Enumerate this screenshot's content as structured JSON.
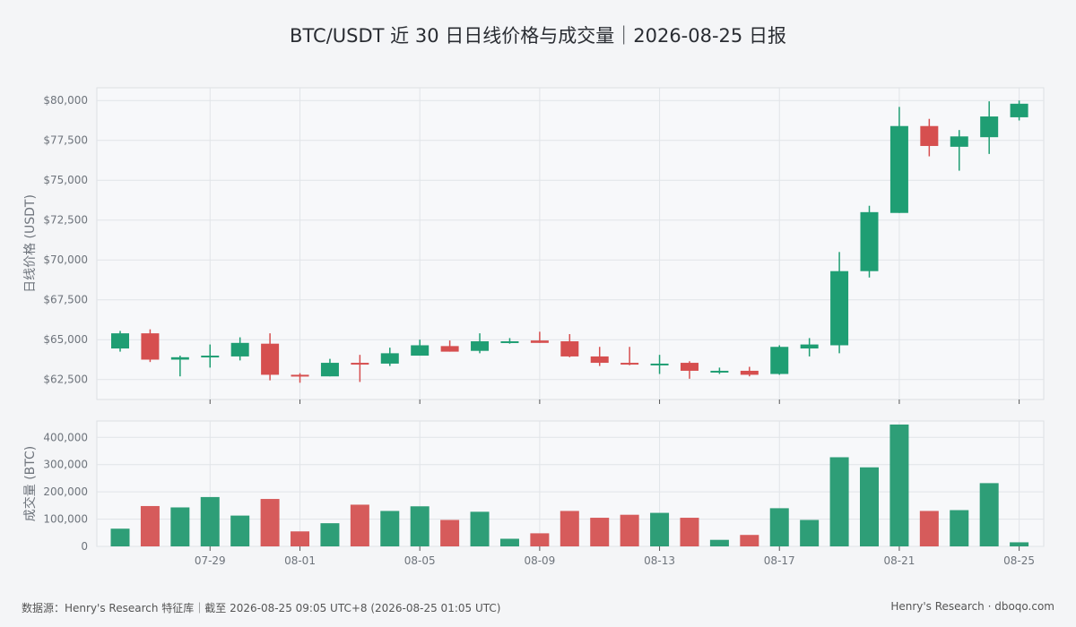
{
  "chart_data": {
    "type": "candlestick",
    "title": "BTC/USDT 近 30 日日线价格与成交量｜2026-08-25 日报",
    "colors": {
      "up": "#1f9e73",
      "down": "#d64f4f",
      "up_volume": "#2e9e77",
      "down_volume": "#d65b5b"
    },
    "grid": true,
    "price_panel": {
      "ylabel": "日线价格 (USDT)",
      "ylim": [
        61250,
        80800
      ],
      "yticks": [
        62500,
        65000,
        67500,
        70000,
        72500,
        75000,
        77500,
        80000
      ],
      "ytick_labels": [
        "$62,500",
        "$65,000",
        "$67,500",
        "$70,000",
        "$72,500",
        "$75,000",
        "$77,500",
        "$80,000"
      ]
    },
    "volume_panel": {
      "ylabel": "成交量 (BTC)",
      "ylim": [
        0,
        460000
      ],
      "yticks": [
        0,
        100000,
        200000,
        300000,
        400000
      ],
      "ytick_labels": [
        "0",
        "100,000",
        "200,000",
        "300,000",
        "400,000"
      ]
    },
    "x_ticks": [
      {
        "date": "2026-07-29",
        "label": "07-29"
      },
      {
        "date": "2026-08-01",
        "label": "08-01"
      },
      {
        "date": "2026-08-05",
        "label": "08-05"
      },
      {
        "date": "2026-08-09",
        "label": "08-09"
      },
      {
        "date": "2026-08-13",
        "label": "08-13"
      },
      {
        "date": "2026-08-17",
        "label": "08-17"
      },
      {
        "date": "2026-08-21",
        "label": "08-21"
      },
      {
        "date": "2026-08-25",
        "label": "08-25"
      }
    ],
    "candles": [
      {
        "date": "2026-07-26",
        "open": 64450,
        "high": 65550,
        "low": 64250,
        "close": 65400,
        "volume": 65000
      },
      {
        "date": "2026-07-27",
        "open": 65400,
        "high": 65650,
        "low": 63600,
        "close": 63750,
        "volume": 148000
      },
      {
        "date": "2026-07-28",
        "open": 63750,
        "high": 64000,
        "low": 62700,
        "close": 63900,
        "volume": 143000
      },
      {
        "date": "2026-07-29",
        "open": 63900,
        "high": 64700,
        "low": 63250,
        "close": 64000,
        "volume": 181000
      },
      {
        "date": "2026-07-30",
        "open": 63950,
        "high": 65150,
        "low": 63700,
        "close": 64800,
        "volume": 113000
      },
      {
        "date": "2026-07-31",
        "open": 64750,
        "high": 65400,
        "low": 62450,
        "close": 62800,
        "volume": 174000
      },
      {
        "date": "2026-08-01",
        "open": 62800,
        "high": 62900,
        "low": 62300,
        "close": 62700,
        "volume": 55000
      },
      {
        "date": "2026-08-02",
        "open": 62700,
        "high": 63800,
        "low": 62700,
        "close": 63550,
        "volume": 85000
      },
      {
        "date": "2026-08-03",
        "open": 63550,
        "high": 64050,
        "low": 62350,
        "close": 63500,
        "volume": 153000
      },
      {
        "date": "2026-08-04",
        "open": 63500,
        "high": 64500,
        "low": 63350,
        "close": 64150,
        "volume": 130000
      },
      {
        "date": "2026-08-05",
        "open": 64000,
        "high": 65000,
        "low": 64000,
        "close": 64650,
        "volume": 147000
      },
      {
        "date": "2026-08-06",
        "open": 64600,
        "high": 64950,
        "low": 64250,
        "close": 64250,
        "volume": 97000
      },
      {
        "date": "2026-08-07",
        "open": 64300,
        "high": 65400,
        "low": 64150,
        "close": 64900,
        "volume": 127000
      },
      {
        "date": "2026-08-08",
        "open": 64800,
        "high": 65100,
        "low": 64750,
        "close": 64900,
        "volume": 28000
      },
      {
        "date": "2026-08-09",
        "open": 64950,
        "high": 65500,
        "low": 64800,
        "close": 64800,
        "volume": 48000
      },
      {
        "date": "2026-08-10",
        "open": 64900,
        "high": 65350,
        "low": 63900,
        "close": 63950,
        "volume": 130000
      },
      {
        "date": "2026-08-11",
        "open": 63950,
        "high": 64550,
        "low": 63350,
        "close": 63550,
        "volume": 105000
      },
      {
        "date": "2026-08-12",
        "open": 63550,
        "high": 64550,
        "low": 63400,
        "close": 63450,
        "volume": 116000
      },
      {
        "date": "2026-08-13",
        "open": 63450,
        "high": 64050,
        "low": 62850,
        "close": 63500,
        "volume": 123000
      },
      {
        "date": "2026-08-14",
        "open": 63550,
        "high": 63650,
        "low": 62550,
        "close": 63050,
        "volume": 105000
      },
      {
        "date": "2026-08-15",
        "open": 62950,
        "high": 63250,
        "low": 62850,
        "close": 63050,
        "volume": 24000
      },
      {
        "date": "2026-08-16",
        "open": 63050,
        "high": 63300,
        "low": 62700,
        "close": 62800,
        "volume": 42000
      },
      {
        "date": "2026-08-17",
        "open": 62850,
        "high": 64650,
        "low": 62800,
        "close": 64550,
        "volume": 140000
      },
      {
        "date": "2026-08-18",
        "open": 64450,
        "high": 65100,
        "low": 63950,
        "close": 64700,
        "volume": 97000
      },
      {
        "date": "2026-08-19",
        "open": 64650,
        "high": 70500,
        "low": 64150,
        "close": 69300,
        "volume": 327000
      },
      {
        "date": "2026-08-20",
        "open": 69300,
        "high": 73400,
        "low": 68900,
        "close": 73000,
        "volume": 290000
      },
      {
        "date": "2026-08-21",
        "open": 72950,
        "high": 79600,
        "low": 72950,
        "close": 78400,
        "volume": 447000
      },
      {
        "date": "2026-08-22",
        "open": 78400,
        "high": 78850,
        "low": 76500,
        "close": 77150,
        "volume": 130000
      },
      {
        "date": "2026-08-23",
        "open": 77100,
        "high": 78150,
        "low": 75600,
        "close": 77750,
        "volume": 133000
      },
      {
        "date": "2026-08-24",
        "open": 77700,
        "high": 79950,
        "low": 76650,
        "close": 79000,
        "volume": 232000
      },
      {
        "date": "2026-08-25",
        "open": 78950,
        "high": 80000,
        "low": 78750,
        "close": 79800,
        "volume": 15000
      }
    ]
  },
  "footer": {
    "source": "数据源：Henry's Research 特征库｜截至 2026-08-25 09:05 UTC+8 (2026-08-25 01:05 UTC)",
    "brand": "Henry's Research · dboqo.com"
  }
}
